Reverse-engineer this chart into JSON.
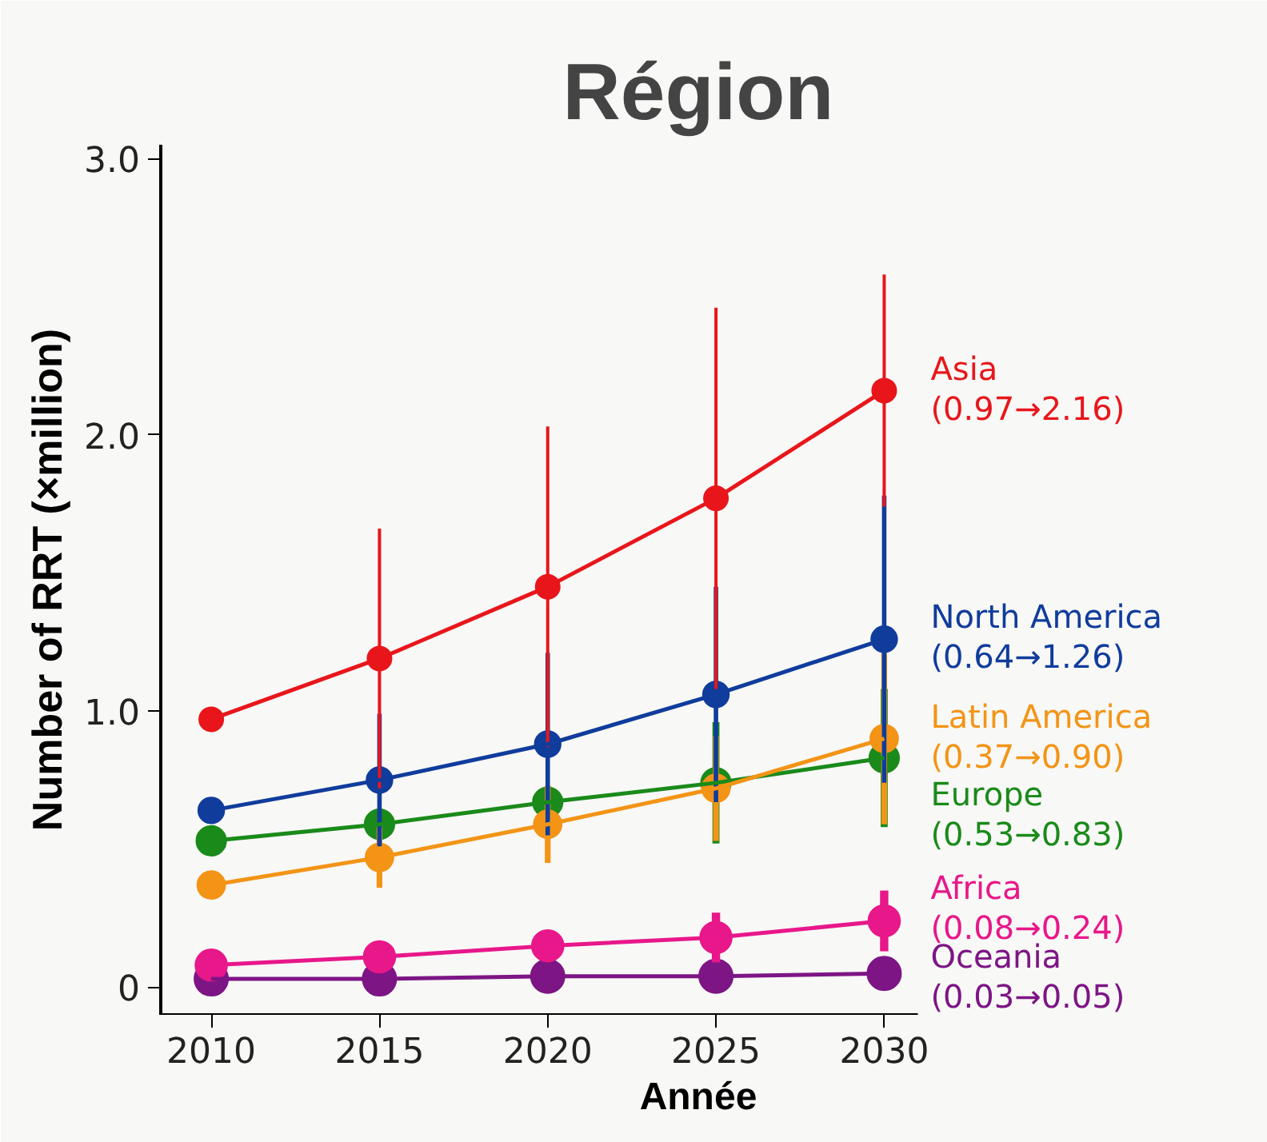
{
  "chart_data": {
    "type": "line",
    "title": "Région",
    "xlabel": "Année",
    "ylabel": "Number of RRT (×million)",
    "x": [
      2010,
      2015,
      2020,
      2025,
      2030
    ],
    "xlim": [
      2008.5,
      2031
    ],
    "xticks": [
      2010,
      2015,
      2020,
      2025,
      2030
    ],
    "ylim": [
      -0.1,
      3.05
    ],
    "yticks": [
      {
        "value": 0,
        "label": "0"
      },
      {
        "value": 1,
        "label": "1.0"
      },
      {
        "value": 2,
        "label": "2.0"
      },
      {
        "value": 3,
        "label": "3.0"
      }
    ],
    "grid": false,
    "marker": "circle",
    "line_style": "solid",
    "series": [
      {
        "name": "Asia",
        "color": "#e8161b",
        "values": [
          0.97,
          1.19,
          1.45,
          1.77,
          2.16
        ],
        "errors": [
          null,
          0.47,
          0.58,
          0.69,
          0.42
        ]
      },
      {
        "name": "North America",
        "color": "#103c9c",
        "values": [
          0.64,
          0.75,
          0.88,
          1.06,
          1.26
        ],
        "errors": [
          null,
          0.24,
          0.33,
          0.39,
          0.52
        ]
      },
      {
        "name": "Latin America",
        "color": "#f39416",
        "values": [
          0.37,
          0.47,
          0.59,
          0.72,
          0.9
        ],
        "errors": [
          null,
          0.11,
          0.14,
          0.19,
          0.31
        ]
      },
      {
        "name": "Europe",
        "color": "#1a8a1a",
        "values": [
          0.53,
          0.59,
          0.67,
          0.74,
          0.83
        ],
        "errors": [
          null,
          null,
          null,
          0.22,
          0.25
        ]
      },
      {
        "name": "Africa",
        "color": "#e8178a",
        "values": [
          0.08,
          0.11,
          0.15,
          0.18,
          0.24
        ],
        "errors": [
          null,
          null,
          null,
          0.09,
          0.11
        ]
      },
      {
        "name": "Oceania",
        "color": "#7d1585",
        "values": [
          0.03,
          0.03,
          0.04,
          0.04,
          0.05
        ],
        "errors": [
          null,
          null,
          null,
          null,
          null
        ]
      }
    ],
    "annotations": [
      "(0.97→2.16)",
      "(0.64→1.26)",
      "(0.37→0.90)",
      "(0.53→0.83)",
      "(0.08→0.24)",
      "(0.03→0.05)"
    ]
  }
}
